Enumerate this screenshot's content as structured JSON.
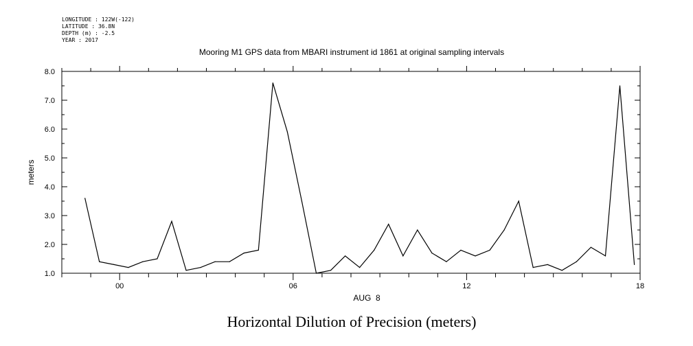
{
  "meta_lines": [
    "LONGITUDE : 122W(-122)",
    "LATITUDE : 36.8N",
    "DEPTH (m) : -2.5",
    "YEAR : 2017"
  ],
  "chart_data": {
    "type": "line",
    "title": "Mooring M1 GPS data from MBARI instrument id 1861 at original sampling intervals",
    "bottom_title": "Horizontal Dilution of Precision (meters)",
    "xlabel": "AUG  8",
    "ylabel": "meters",
    "xlim": [
      -2.0,
      18.0
    ],
    "ylim": [
      1.0,
      8.0
    ],
    "x_ticks": [
      0,
      6,
      12,
      18
    ],
    "x_tick_labels": [
      "00",
      "06",
      "12",
      "18"
    ],
    "y_ticks": [
      1,
      2,
      3,
      4,
      5,
      6,
      7,
      8
    ],
    "y_tick_labels": [
      "1.0",
      "2.0",
      "3.0",
      "4.0",
      "5.0",
      "6.0",
      "7.0",
      "8.0"
    ],
    "x_unit": "hours",
    "series": [
      {
        "x": [
          -1.2,
          -0.7,
          -0.2,
          0.3,
          0.8,
          1.3,
          1.8,
          2.3,
          2.8,
          3.3,
          3.8,
          4.3,
          4.8,
          5.3,
          5.8,
          6.3,
          6.8,
          7.3,
          7.8,
          8.3,
          8.8,
          9.3,
          9.8,
          10.3,
          10.8,
          11.3,
          11.8,
          12.3,
          12.8,
          13.3,
          13.8,
          14.3,
          14.8,
          15.3,
          15.8,
          16.3,
          16.8,
          17.3,
          17.8
        ],
        "y": [
          3.6,
          1.4,
          1.3,
          1.2,
          1.4,
          1.5,
          2.8,
          1.1,
          1.2,
          1.4,
          1.4,
          1.7,
          1.8,
          7.6,
          5.9,
          3.5,
          1.0,
          1.1,
          1.6,
          1.2,
          1.8,
          2.7,
          1.6,
          2.5,
          1.7,
          1.4,
          1.8,
          1.6,
          1.8,
          2.5,
          3.5,
          1.2,
          1.3,
          1.1,
          1.4,
          1.9,
          1.6,
          7.5,
          1.3
        ]
      }
    ]
  }
}
